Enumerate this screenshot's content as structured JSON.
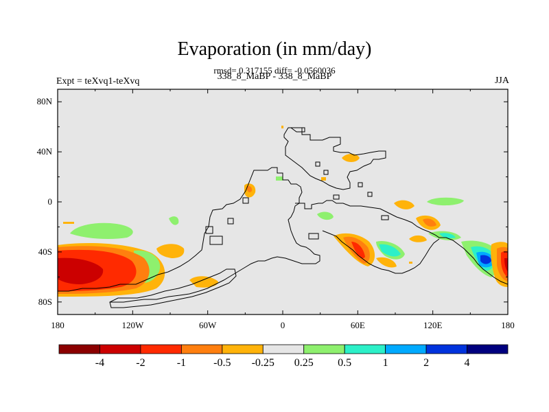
{
  "title": "Evaporation (in mm/day)",
  "subtitle": "rmsd= 0.317155 diff= -0.0560036",
  "expt_label": "Expt = teXvq1-teXvq",
  "center_label": "338_8_MaBP - 338_8_MaBP",
  "season": "JJA",
  "chart_data": {
    "type": "map-contour",
    "title": "Evaporation (in mm/day)",
    "lat_ticks": [
      "80N",
      "40N",
      "0",
      "40S",
      "80S"
    ],
    "lat_values": [
      80,
      40,
      0,
      -40,
      -80
    ],
    "lon_ticks": [
      "180",
      "120W",
      "60W",
      "0",
      "60E",
      "120E",
      "180"
    ],
    "lon_values": [
      -180,
      -120,
      -60,
      0,
      60,
      120,
      180
    ],
    "lat_range": [
      -90,
      90
    ],
    "lon_range": [
      -180,
      180
    ],
    "colorbar": {
      "levels": [
        "-4",
        "-2",
        "-1",
        "-0.5",
        "-0.25",
        "0.25",
        "0.5",
        "1",
        "2",
        "4"
      ],
      "colors": [
        "#8b0000",
        "#cc0000",
        "#ff2a00",
        "#ff7f0f",
        "#ffb30a",
        "#e6e6e6",
        "#8ef06e",
        "#2cf0c8",
        "#00aaff",
        "#0033dd",
        "#00007f"
      ]
    }
  }
}
